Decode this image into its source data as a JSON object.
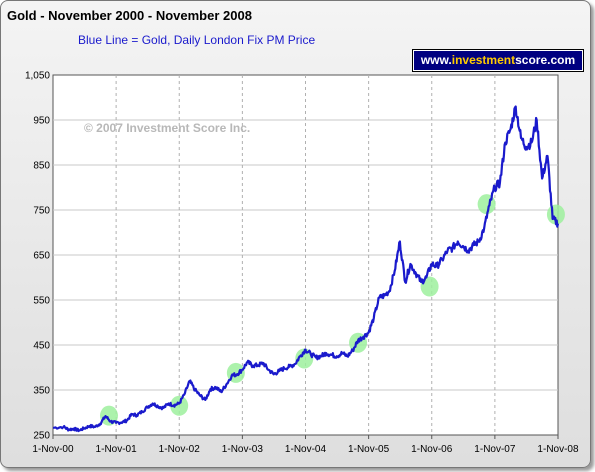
{
  "header": {
    "title": "Gold - November 2000 - November 2008",
    "subtitle": "Blue Line = Gold, Daily London Fix PM Price",
    "brand": {
      "prefix": "www.",
      "highlight": "investment",
      "rest": "score",
      "suffix": ".com"
    }
  },
  "chart_data": {
    "type": "line",
    "title": "Gold - November 2000 - November 2008",
    "subtitle": "Blue Line = Gold, Daily London Fix PM Price",
    "xlabel": "",
    "ylabel": "",
    "watermark": "© 2007 Investment Score Inc.",
    "xlim": [
      "2000-11-01",
      "2008-11-01"
    ],
    "ylim": [
      250,
      1050
    ],
    "yticks": [
      250,
      350,
      450,
      550,
      650,
      750,
      850,
      950,
      1050
    ],
    "ytick_labels": [
      "250",
      "350",
      "450",
      "550",
      "650",
      "750",
      "850",
      "950",
      "1,050"
    ],
    "xtick_labels": [
      "1-Nov-00",
      "1-Nov-01",
      "1-Nov-02",
      "1-Nov-03",
      "1-Nov-04",
      "1-Nov-05",
      "1-Nov-06",
      "1-Nov-07",
      "1-Nov-08"
    ],
    "grid": {
      "x": "dashed",
      "y": "solid"
    },
    "line_color": "#1a1acc",
    "highlight_color": "#9ef09e",
    "series": [
      {
        "x": [
          "2000-11-01",
          "2001-01-01",
          "2001-02-01",
          "2001-03-01",
          "2001-04-01",
          "2001-05-01",
          "2001-06-01",
          "2001-07-01",
          "2001-08-01",
          "2001-09-01",
          "2001-10-01",
          "2001-11-01",
          "2001-12-01",
          "2002-01-01",
          "2002-02-01",
          "2002-03-01",
          "2002-04-01",
          "2002-05-01",
          "2002-06-01",
          "2002-07-01",
          "2002-08-01",
          "2002-09-01",
          "2002-10-01",
          "2002-11-01",
          "2002-12-01",
          "2003-01-01",
          "2003-02-01",
          "2003-03-01",
          "2003-04-01",
          "2003-05-01",
          "2003-06-01",
          "2003-07-01",
          "2003-08-01",
          "2003-09-01",
          "2003-10-01",
          "2003-11-01",
          "2003-12-01",
          "2004-01-01",
          "2004-02-01",
          "2004-03-01",
          "2004-04-01",
          "2004-05-01",
          "2004-06-01",
          "2004-07-01",
          "2004-08-01",
          "2004-09-01",
          "2004-10-01",
          "2004-11-01",
          "2004-12-01",
          "2005-01-01",
          "2005-02-01",
          "2005-03-01",
          "2005-04-01",
          "2005-05-01",
          "2005-06-01",
          "2005-07-01",
          "2005-08-01",
          "2005-09-01",
          "2005-10-01",
          "2005-11-01",
          "2005-12-01",
          "2006-01-01",
          "2006-02-01",
          "2006-03-01",
          "2006-04-01",
          "2006-05-01",
          "2006-06-01",
          "2006-07-01",
          "2006-08-01",
          "2006-09-01",
          "2006-10-01",
          "2006-11-01",
          "2006-12-01",
          "2007-01-01",
          "2007-02-01",
          "2007-03-01",
          "2007-04-01",
          "2007-05-01",
          "2007-06-01",
          "2007-07-01",
          "2007-08-01",
          "2007-09-01",
          "2007-10-01",
          "2007-11-01",
          "2007-12-01",
          "2008-01-01",
          "2008-02-01",
          "2008-03-01",
          "2008-04-01",
          "2008-05-01",
          "2008-06-01",
          "2008-07-01",
          "2008-08-01",
          "2008-09-01",
          "2008-10-01",
          "2008-11-01"
        ],
        "y": [
          266,
          268,
          262,
          264,
          260,
          265,
          270,
          268,
          275,
          292,
          280,
          277,
          278,
          282,
          296,
          294,
          302,
          312,
          320,
          314,
          310,
          320,
          316,
          320,
          340,
          370,
          350,
          338,
          328,
          352,
          356,
          346,
          362,
          382,
          385,
          395,
          412,
          404,
          405,
          410,
          395,
          385,
          392,
          398,
          402,
          408,
          425,
          440,
          430,
          422,
          426,
          432,
          428,
          425,
          432,
          425,
          438,
          460,
          468,
          478,
          510,
          555,
          560,
          570,
          615,
          680,
          590,
          630,
          610,
          590,
          600,
          630,
          625,
          640,
          660,
          665,
          680,
          670,
          660,
          672,
          680,
          710,
          760,
          800,
          810,
          900,
          930,
          980,
          910,
          890,
          900,
          950,
          820,
          870,
          730,
          720
        ]
      }
    ],
    "highlights": [
      {
        "x": "2001-09-21",
        "y": 293
      },
      {
        "x": "2002-11-01",
        "y": 315
      },
      {
        "x": "2003-09-25",
        "y": 388
      },
      {
        "x": "2004-10-25",
        "y": 420
      },
      {
        "x": "2005-09-01",
        "y": 455
      },
      {
        "x": "2006-10-20",
        "y": 580
      },
      {
        "x": "2007-09-15",
        "y": 763
      },
      {
        "x": "2008-10-20",
        "y": 740
      }
    ]
  }
}
